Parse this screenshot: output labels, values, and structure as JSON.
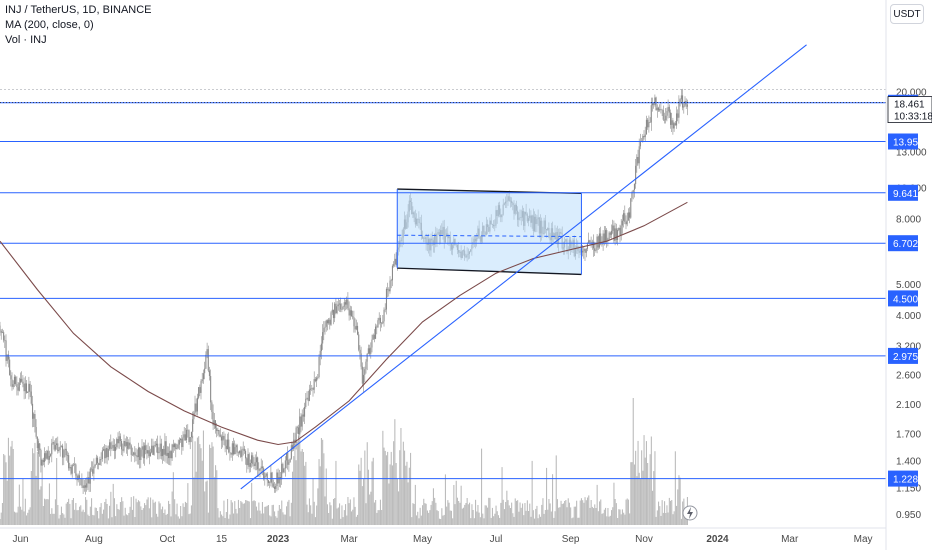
{
  "header": {
    "symbol_line": "INJ / TetherUS, 1D, BINANCE",
    "ma_line": "MA (200, close, 0)",
    "vol_line": "Vol · INJ"
  },
  "currency_button": "USDT",
  "colors": {
    "background": "#ffffff",
    "candles": "#8a8a8a",
    "volume": "#bcbcbc",
    "ma": "#7b4a4a",
    "levels": "#2962ff",
    "box_fill": "#bbdefb",
    "axis_text": "#4a4a4a"
  },
  "chart_data": {
    "type": "candlestick",
    "title": "INJ / TetherUS, 1D, BINANCE",
    "y_scale": "log",
    "ylim": [
      0.86,
      29
    ],
    "xlim": [
      "2022-05-15",
      "2024-05-20"
    ],
    "x_ticks": [
      {
        "label": "Jun",
        "date": "2022-06-01"
      },
      {
        "label": "Aug",
        "date": "2022-08-01"
      },
      {
        "label": "Oct",
        "date": "2022-10-01"
      },
      {
        "label": "15",
        "date": "2022-11-15"
      },
      {
        "label": "2023",
        "date": "2023-01-01"
      },
      {
        "label": "Mar",
        "date": "2023-03-01"
      },
      {
        "label": "May",
        "date": "2023-05-01"
      },
      {
        "label": "Jul",
        "date": "2023-07-01"
      },
      {
        "label": "Sep",
        "date": "2023-09-01"
      },
      {
        "label": "Nov",
        "date": "2023-11-01"
      },
      {
        "label": "2024",
        "date": "2024-01-01"
      },
      {
        "label": "Mar",
        "date": "2024-03-01"
      },
      {
        "label": "May",
        "date": "2024-05-01"
      }
    ],
    "y_ticks": [
      {
        "label": "20.000",
        "value": 20.0
      },
      {
        "label": "13.000",
        "value": 13.0
      },
      {
        "label": "10.000",
        "value": 10.0
      },
      {
        "label": "8.000",
        "value": 8.0
      },
      {
        "label": "5.000",
        "value": 5.0
      },
      {
        "label": "4.000",
        "value": 4.0
      },
      {
        "label": "3.200",
        "value": 3.2
      },
      {
        "label": "2.600",
        "value": 2.6
      },
      {
        "label": "2.100",
        "value": 2.1
      },
      {
        "label": "1.700",
        "value": 1.7
      },
      {
        "label": "1.400",
        "value": 1.4
      },
      {
        "label": "1.150",
        "value": 1.15
      },
      {
        "label": "0.950",
        "value": 0.95
      }
    ],
    "price_path": [
      [
        "2022-05-15",
        3.7
      ],
      [
        "2022-05-25",
        2.5
      ],
      [
        "2022-06-08",
        2.3
      ],
      [
        "2022-06-18",
        1.4
      ],
      [
        "2022-07-01",
        1.6
      ],
      [
        "2022-07-15",
        1.3
      ],
      [
        "2022-07-25",
        1.2
      ],
      [
        "2022-08-08",
        1.45
      ],
      [
        "2022-08-22",
        1.6
      ],
      [
        "2022-09-05",
        1.45
      ],
      [
        "2022-09-20",
        1.55
      ],
      [
        "2022-10-05",
        1.5
      ],
      [
        "2022-10-20",
        1.7
      ],
      [
        "2022-10-28",
        2.4
      ],
      [
        "2022-11-03",
        3.0
      ],
      [
        "2022-11-08",
        1.8
      ],
      [
        "2022-11-15",
        1.6
      ],
      [
        "2022-11-25",
        1.5
      ],
      [
        "2022-12-10",
        1.4
      ],
      [
        "2022-12-30",
        1.2
      ],
      [
        "2023-01-10",
        1.45
      ],
      [
        "2023-01-22",
        2.0
      ],
      [
        "2023-02-02",
        2.5
      ],
      [
        "2023-02-08",
        3.8
      ],
      [
        "2023-02-15",
        4.0
      ],
      [
        "2023-02-25",
        4.5
      ],
      [
        "2023-03-08",
        3.6
      ],
      [
        "2023-03-12",
        2.5
      ],
      [
        "2023-03-18",
        3.2
      ],
      [
        "2023-03-28",
        3.9
      ],
      [
        "2023-04-05",
        5.3
      ],
      [
        "2023-04-12",
        6.5
      ],
      [
        "2023-04-20",
        8.8
      ],
      [
        "2023-04-28",
        7.5
      ],
      [
        "2023-05-05",
        6.6
      ],
      [
        "2023-05-20",
        7.2
      ],
      [
        "2023-06-05",
        6.0
      ],
      [
        "2023-06-15",
        7.0
      ],
      [
        "2023-06-25",
        7.6
      ],
      [
        "2023-07-10",
        9.0
      ],
      [
        "2023-07-25",
        8.0
      ],
      [
        "2023-08-10",
        7.5
      ],
      [
        "2023-08-25",
        6.8
      ],
      [
        "2023-09-10",
        6.3
      ],
      [
        "2023-09-25",
        6.9
      ],
      [
        "2023-10-10",
        7.3
      ],
      [
        "2023-10-20",
        8.5
      ],
      [
        "2023-10-26",
        12.0
      ],
      [
        "2023-11-02",
        15.0
      ],
      [
        "2023-11-10",
        19.0
      ],
      [
        "2023-11-15",
        17.0
      ],
      [
        "2023-11-20",
        17.5
      ],
      [
        "2023-11-25",
        15.5
      ],
      [
        "2023-12-01",
        18.5
      ],
      [
        "2023-12-07",
        18.461
      ]
    ],
    "ma_200": [
      [
        "2022-05-15",
        6.8
      ],
      [
        "2022-06-15",
        4.8
      ],
      [
        "2022-07-15",
        3.5
      ],
      [
        "2022-08-15",
        2.75
      ],
      [
        "2022-09-15",
        2.3
      ],
      [
        "2022-10-15",
        2.0
      ],
      [
        "2022-11-15",
        1.78
      ],
      [
        "2022-12-15",
        1.62
      ],
      [
        "2023-01-01",
        1.57
      ],
      [
        "2023-01-15",
        1.6
      ],
      [
        "2023-02-01",
        1.78
      ],
      [
        "2023-03-01",
        2.15
      ],
      [
        "2023-04-01",
        2.9
      ],
      [
        "2023-05-01",
        3.8
      ],
      [
        "2023-06-01",
        4.6
      ],
      [
        "2023-07-01",
        5.4
      ],
      [
        "2023-08-01",
        6.0
      ],
      [
        "2023-09-01",
        6.4
      ],
      [
        "2023-10-01",
        6.8
      ],
      [
        "2023-11-01",
        7.6
      ],
      [
        "2023-12-07",
        9.0
      ]
    ],
    "horizontal_levels": [
      {
        "label": "18.441",
        "value": 18.441
      },
      {
        "label": "13.951",
        "value": 13.951
      },
      {
        "label": "9.641",
        "value": 9.641
      },
      {
        "label": "6.702",
        "value": 6.702
      },
      {
        "label": "4.500",
        "value": 4.5
      },
      {
        "label": "2.975",
        "value": 2.975
      },
      {
        "label": "1.228",
        "value": 1.228
      }
    ],
    "last_price": {
      "label": "18.461",
      "value": 18.461,
      "countdown": "10:33:18"
    },
    "trendline": [
      [
        "2022-12-01",
        1.14
      ],
      [
        "2024-03-15",
        28.0
      ]
    ],
    "range_box": {
      "x0": "2023-04-10",
      "x1": "2023-09-10",
      "top_left": 9.9,
      "top_right": 9.6,
      "bottom_left": 5.6,
      "bottom_right": 5.35,
      "mid": 7.1
    }
  }
}
